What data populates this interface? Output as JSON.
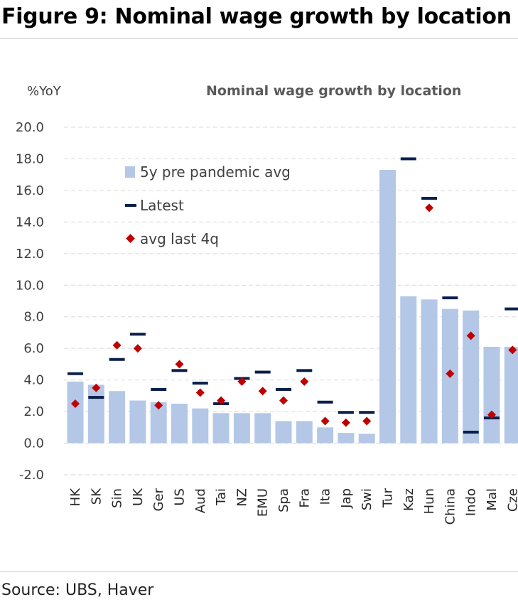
{
  "figure_title": "Figure 9: Nominal wage growth by location",
  "source": "Source: UBS, Haver",
  "colors": {
    "bar": "#b4c7e7",
    "latest": "#0b1f4b",
    "avg": "#c00000",
    "grid": "#d9d9d9"
  },
  "chart_data": {
    "type": "bar",
    "title": "Nominal wage growth by location",
    "ylabel": "%YoY",
    "ylim": [
      -2.0,
      20.0
    ],
    "yticks": [
      "20.0",
      "18.0",
      "16.0",
      "14.0",
      "12.0",
      "10.0",
      "8.0",
      "6.0",
      "4.0",
      "2.0",
      "0.0",
      "-2.0"
    ],
    "ytick_values": [
      20,
      18,
      16,
      14,
      12,
      10,
      8,
      6,
      4,
      2,
      0,
      -2
    ],
    "grid": true,
    "legend_position": "top-left",
    "categories": [
      "HK",
      "SK",
      "Sin",
      "UK",
      "Ger",
      "US",
      "Aud",
      "Tai",
      "NZ",
      "EMU",
      "Spa",
      "Fra",
      "Ita",
      "Jap",
      "Swi",
      "Tur",
      "Kaz",
      "Hun",
      "China",
      "Indo",
      "Mal",
      "Cze"
    ],
    "series": [
      {
        "name": "5y pre pandemic avg",
        "kind": "bar",
        "values": [
          3.9,
          3.7,
          3.3,
          2.7,
          2.6,
          2.5,
          2.2,
          1.9,
          1.9,
          1.9,
          1.4,
          1.4,
          1.0,
          0.65,
          0.6,
          17.3,
          9.3,
          9.1,
          8.5,
          8.4,
          6.1,
          6.1
        ]
      },
      {
        "name": "Latest",
        "kind": "dash",
        "values": [
          4.4,
          2.9,
          5.3,
          6.9,
          3.4,
          4.6,
          3.8,
          2.5,
          4.1,
          4.5,
          3.4,
          4.6,
          2.6,
          1.95,
          1.95,
          null,
          18.0,
          15.5,
          9.2,
          0.7,
          1.6,
          8.5
        ]
      },
      {
        "name": "avg last 4q",
        "kind": "diamond",
        "values": [
          2.5,
          3.5,
          6.2,
          6.0,
          2.4,
          5.0,
          3.2,
          2.7,
          3.9,
          3.3,
          2.7,
          3.9,
          1.4,
          1.3,
          1.4,
          null,
          null,
          14.9,
          4.4,
          6.8,
          1.8,
          5.9
        ]
      }
    ]
  }
}
